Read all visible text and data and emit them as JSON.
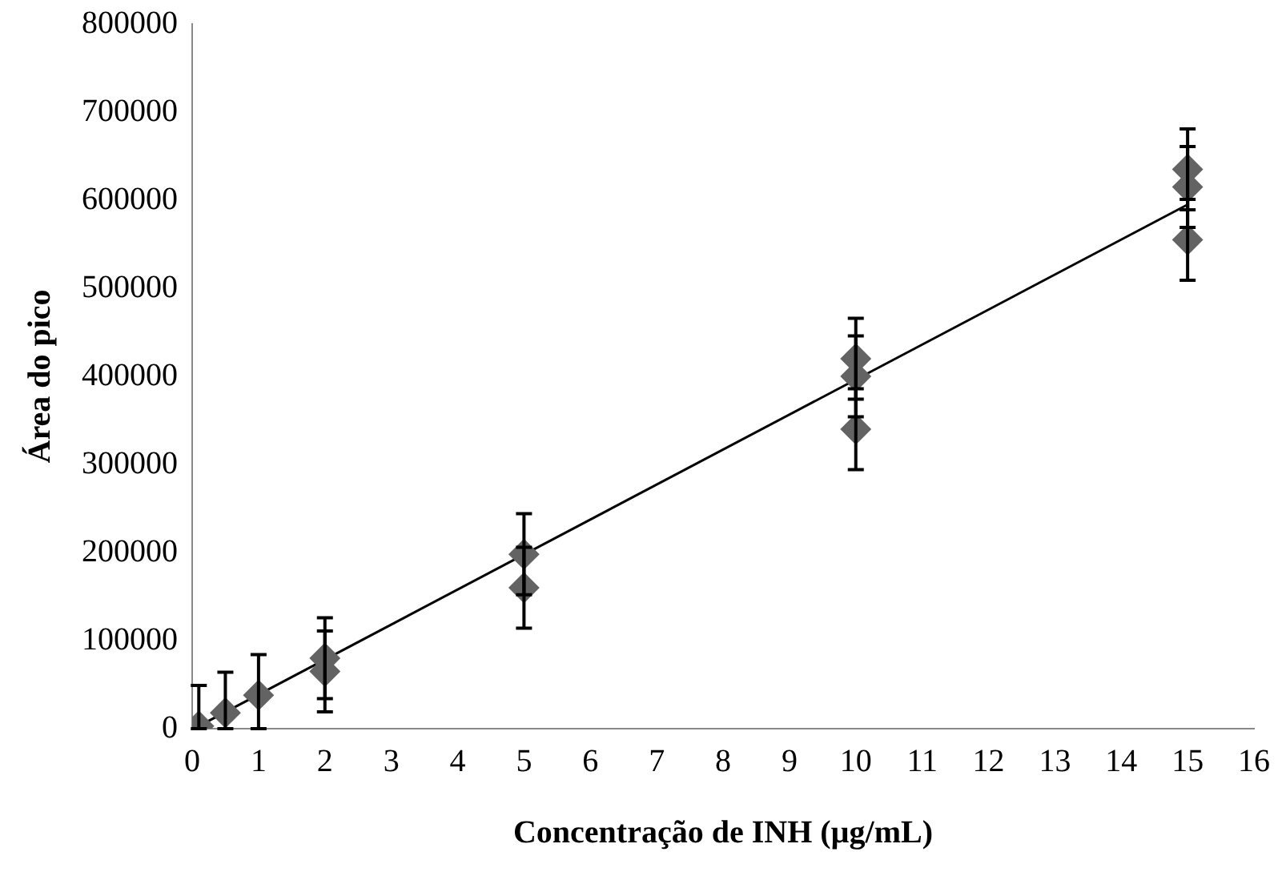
{
  "chart_data": {
    "type": "scatter",
    "xlabel": "Concentração de INH (µg/mL)",
    "ylabel": "Área do pico",
    "xlim": [
      0,
      16
    ],
    "xticks": [
      0,
      1,
      2,
      3,
      4,
      5,
      6,
      7,
      8,
      9,
      10,
      11,
      12,
      13,
      14,
      15,
      16
    ],
    "ylim": [
      0,
      800000
    ],
    "yticks": [
      0,
      100000,
      200000,
      300000,
      400000,
      500000,
      600000,
      700000,
      800000
    ],
    "grid": false,
    "legend": false,
    "marker": "diamond",
    "series": [
      {
        "color": "#636363",
        "x": [
          0.1,
          0.5,
          1,
          2,
          2,
          5,
          5,
          10,
          10,
          10,
          15,
          15,
          15
        ],
        "values": [
          3000,
          18000,
          38000,
          65000,
          80000,
          160000,
          198000,
          340000,
          400000,
          420000,
          555000,
          615000,
          635000
        ],
        "errors": [
          [
            0,
            49000
          ],
          [
            0,
            64000
          ],
          [
            0,
            84000
          ],
          46000,
          46000,
          46000,
          46000,
          46000,
          46000,
          46000,
          46000,
          46000,
          46000
        ]
      },
      {
        "type": "line",
        "color": "#000000",
        "x": [
          0.1,
          15
        ],
        "values": [
          3000,
          595000
        ],
        "marker": "none",
        "line_style": "solid"
      }
    ]
  }
}
